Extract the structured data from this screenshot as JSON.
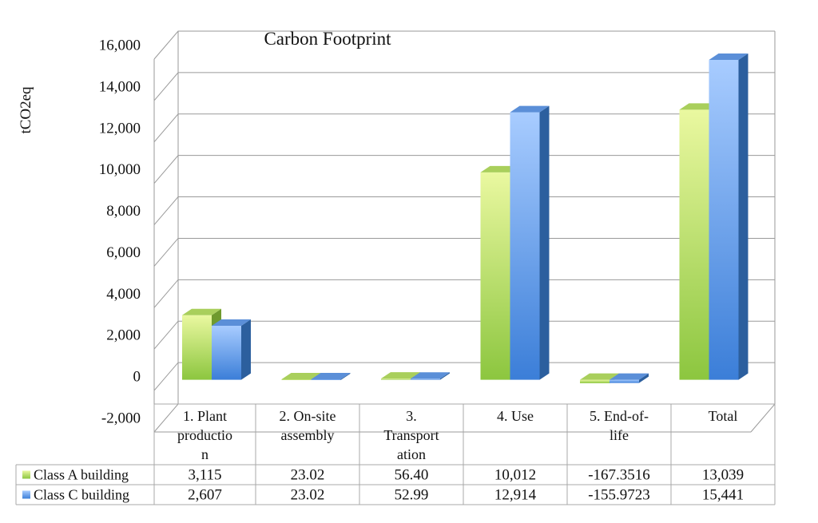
{
  "chart_data": {
    "type": "bar",
    "title": "Carbon Footprint",
    "ylabel": "tCO2eq",
    "xlabel": "",
    "ylim": [
      -2000,
      16000
    ],
    "yticks": [
      "16,000",
      "14,000",
      "12,000",
      "10,000",
      "8,000",
      "6,000",
      "4,000",
      "2,000",
      "0",
      "-2,000"
    ],
    "ytick_values": [
      16000,
      14000,
      12000,
      10000,
      8000,
      6000,
      4000,
      2000,
      0,
      -2000
    ],
    "categories": [
      [
        "1. Plant",
        "productio",
        "n"
      ],
      [
        "2. On-site",
        "assembly"
      ],
      [
        "3.",
        "Transport",
        "ation"
      ],
      [
        "4. Use"
      ],
      [
        "5. End-of-",
        "life"
      ],
      [
        "Total"
      ]
    ],
    "series": [
      {
        "name": "Class A building",
        "values": [
          3115,
          23.02,
          56.4,
          10012,
          -167.3516,
          13039
        ],
        "labels": [
          "3,115",
          "23.02",
          "56.40",
          "10,012",
          "-167.3516",
          "13,039"
        ],
        "colors": {
          "front_top": "#eaf8a0",
          "front_bottom": "#8cc63f",
          "side": "#6f9a2e",
          "top": "#a9cf5c"
        }
      },
      {
        "name": "Class C building",
        "values": [
          2607,
          23.02,
          52.99,
          12914,
          -155.9723,
          15441
        ],
        "labels": [
          "2,607",
          "23.02",
          "52.99",
          "12,914",
          "-155.9723",
          "15,441"
        ],
        "colors": {
          "front_top": "#a8ccff",
          "front_bottom": "#3b7ed8",
          "side": "#2c5f9e",
          "top": "#5b8fd8"
        }
      }
    ],
    "grid": true,
    "legend": "data-table"
  }
}
